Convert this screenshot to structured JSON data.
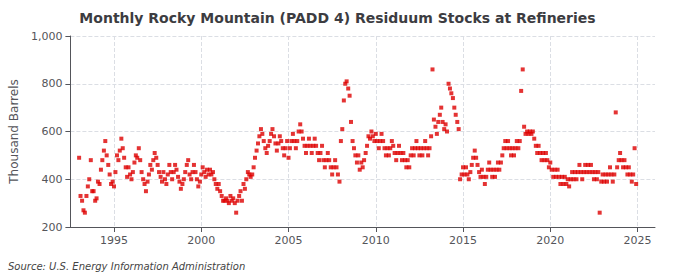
{
  "chart_data": {
    "type": "scatter",
    "title": "Monthly Rocky Mountain (PADD 4) Residuum Stocks at Refineries",
    "ylabel": "Thousand Barrels",
    "annotations": [
      "Source: U.S. Energy Information Administration"
    ],
    "color": "#dd0000",
    "marker": "square",
    "grid": true,
    "xlim": [
      1992.5,
      2026.0
    ],
    "xticks": [
      1995,
      2000,
      2005,
      2010,
      2015,
      2020,
      2025
    ],
    "ylim": [
      200,
      1000
    ],
    "yticks": [
      200,
      400,
      600,
      800,
      {
        "value": 1000,
        "label": "1,000"
      }
    ],
    "x": [
      1993.0,
      1993.08,
      1993.17,
      1993.25,
      1993.33,
      1993.42,
      1993.5,
      1993.58,
      1993.67,
      1993.75,
      1993.83,
      1993.92,
      1994.0,
      1994.08,
      1994.17,
      1994.25,
      1994.33,
      1994.42,
      1994.5,
      1994.58,
      1994.67,
      1994.75,
      1994.83,
      1994.92,
      1995.0,
      1995.08,
      1995.17,
      1995.25,
      1995.33,
      1995.42,
      1995.5,
      1995.58,
      1995.67,
      1995.75,
      1995.83,
      1995.92,
      1996.0,
      1996.08,
      1996.17,
      1996.25,
      1996.33,
      1996.42,
      1996.5,
      1996.58,
      1996.67,
      1996.75,
      1996.83,
      1996.92,
      1997.0,
      1997.08,
      1997.17,
      1997.25,
      1997.33,
      1997.42,
      1997.5,
      1997.58,
      1997.67,
      1997.75,
      1997.83,
      1997.92,
      1998.0,
      1998.08,
      1998.17,
      1998.25,
      1998.33,
      1998.42,
      1998.5,
      1998.58,
      1998.67,
      1998.75,
      1998.83,
      1998.92,
      1999.0,
      1999.08,
      1999.17,
      1999.25,
      1999.33,
      1999.42,
      1999.5,
      1999.58,
      1999.67,
      1999.75,
      1999.83,
      1999.92,
      2000.0,
      2000.08,
      2000.17,
      2000.25,
      2000.33,
      2000.42,
      2000.5,
      2000.58,
      2000.67,
      2000.75,
      2000.83,
      2000.92,
      2001.0,
      2001.08,
      2001.17,
      2001.25,
      2001.33,
      2001.42,
      2001.5,
      2001.58,
      2001.67,
      2001.75,
      2001.83,
      2001.92,
      2002.0,
      2002.08,
      2002.17,
      2002.25,
      2002.33,
      2002.42,
      2002.5,
      2002.58,
      2002.67,
      2002.75,
      2002.83,
      2002.92,
      2003.0,
      2003.08,
      2003.17,
      2003.25,
      2003.33,
      2003.42,
      2003.5,
      2003.58,
      2003.67,
      2003.75,
      2003.83,
      2003.92,
      2004.0,
      2004.08,
      2004.17,
      2004.25,
      2004.33,
      2004.42,
      2004.5,
      2004.58,
      2004.67,
      2004.75,
      2004.83,
      2004.92,
      2005.0,
      2005.08,
      2005.17,
      2005.25,
      2005.33,
      2005.42,
      2005.5,
      2005.58,
      2005.67,
      2005.75,
      2005.83,
      2005.92,
      2006.0,
      2006.08,
      2006.17,
      2006.25,
      2006.33,
      2006.42,
      2006.5,
      2006.58,
      2006.67,
      2006.75,
      2006.83,
      2006.92,
      2007.0,
      2007.08,
      2007.17,
      2007.25,
      2007.33,
      2007.42,
      2007.5,
      2007.58,
      2007.67,
      2007.75,
      2007.83,
      2007.92,
      2008.0,
      2008.08,
      2008.17,
      2008.25,
      2008.33,
      2008.42,
      2008.5,
      2008.58,
      2008.67,
      2008.75,
      2008.83,
      2008.92,
      2009.0,
      2009.08,
      2009.17,
      2009.25,
      2009.33,
      2009.42,
      2009.5,
      2009.58,
      2009.67,
      2009.75,
      2009.83,
      2009.92,
      2010.0,
      2010.08,
      2010.17,
      2010.25,
      2010.33,
      2010.42,
      2010.5,
      2010.58,
      2010.67,
      2010.75,
      2010.83,
      2010.92,
      2011.0,
      2011.08,
      2011.17,
      2011.25,
      2011.33,
      2011.42,
      2011.5,
      2011.58,
      2011.67,
      2011.75,
      2011.83,
      2011.92,
      2012.0,
      2012.08,
      2012.17,
      2012.25,
      2012.33,
      2012.42,
      2012.5,
      2012.58,
      2012.67,
      2012.75,
      2012.83,
      2012.92,
      2013.0,
      2013.08,
      2013.17,
      2013.25,
      2013.33,
      2013.42,
      2013.5,
      2013.58,
      2013.67,
      2013.75,
      2013.83,
      2013.92,
      2014.0,
      2014.08,
      2014.17,
      2014.25,
      2014.33,
      2014.42,
      2014.5,
      2014.58,
      2014.67,
      2014.75,
      2014.83,
      2014.92,
      2015.0,
      2015.08,
      2015.17,
      2015.25,
      2015.33,
      2015.42,
      2015.5,
      2015.58,
      2015.67,
      2015.75,
      2015.83,
      2015.92,
      2016.0,
      2016.08,
      2016.17,
      2016.25,
      2016.33,
      2016.42,
      2016.5,
      2016.58,
      2016.67,
      2016.75,
      2016.83,
      2016.92,
      2017.0,
      2017.08,
      2017.17,
      2017.25,
      2017.33,
      2017.42,
      2017.5,
      2017.58,
      2017.67,
      2017.75,
      2017.83,
      2017.92,
      2018.0,
      2018.08,
      2018.17,
      2018.25,
      2018.33,
      2018.42,
      2018.5,
      2018.58,
      2018.67,
      2018.75,
      2018.83,
      2018.92,
      2019.0,
      2019.08,
      2019.17,
      2019.25,
      2019.33,
      2019.42,
      2019.5,
      2019.58,
      2019.67,
      2019.75,
      2019.83,
      2019.92,
      2020.0,
      2020.08,
      2020.17,
      2020.25,
      2020.33,
      2020.42,
      2020.5,
      2020.58,
      2020.67,
      2020.75,
      2020.83,
      2020.92,
      2021.0,
      2021.08,
      2021.17,
      2021.25,
      2021.33,
      2021.42,
      2021.5,
      2021.58,
      2021.67,
      2021.75,
      2021.83,
      2021.92,
      2022.0,
      2022.08,
      2022.17,
      2022.25,
      2022.33,
      2022.42,
      2022.5,
      2022.58,
      2022.67,
      2022.75,
      2022.83,
      2022.92,
      2023.0,
      2023.08,
      2023.17,
      2023.25,
      2023.33,
      2023.42,
      2023.5,
      2023.58,
      2023.67,
      2023.75,
      2023.83,
      2023.92,
      2024.0,
      2024.08,
      2024.17,
      2024.25,
      2024.33,
      2024.42,
      2024.5,
      2024.58,
      2024.67,
      2024.75,
      2024.83,
      2024.92
    ],
    "values": [
      490,
      330,
      310,
      270,
      260,
      330,
      370,
      400,
      480,
      350,
      350,
      310,
      320,
      390,
      380,
      440,
      480,
      520,
      560,
      500,
      460,
      420,
      380,
      390,
      370,
      430,
      500,
      480,
      520,
      570,
      530,
      490,
      450,
      410,
      450,
      420,
      400,
      430,
      470,
      500,
      490,
      530,
      480,
      430,
      400,
      380,
      350,
      390,
      420,
      460,
      440,
      480,
      510,
      490,
      460,
      430,
      410,
      390,
      430,
      400,
      380,
      420,
      460,
      430,
      400,
      430,
      460,
      440,
      410,
      390,
      360,
      380,
      400,
      430,
      460,
      480,
      420,
      400,
      430,
      460,
      430,
      400,
      370,
      390,
      420,
      450,
      430,
      410,
      440,
      420,
      440,
      420,
      430,
      400,
      380,
      360,
      380,
      350,
      330,
      310,
      310,
      320,
      310,
      300,
      330,
      310,
      320,
      300,
      260,
      310,
      330,
      350,
      310,
      380,
      360,
      400,
      430,
      420,
      410,
      420,
      450,
      490,
      520,
      550,
      580,
      610,
      590,
      560,
      530,
      510,
      540,
      560,
      590,
      610,
      580,
      550,
      520,
      550,
      580,
      560,
      530,
      500,
      530,
      560,
      490,
      530,
      560,
      590,
      560,
      530,
      560,
      600,
      630,
      600,
      570,
      540,
      510,
      540,
      570,
      540,
      510,
      540,
      570,
      540,
      510,
      480,
      510,
      540,
      480,
      450,
      480,
      510,
      480,
      450,
      420,
      450,
      480,
      450,
      420,
      390,
      560,
      610,
      730,
      800,
      810,
      780,
      750,
      640,
      560,
      530,
      500,
      470,
      500,
      440,
      470,
      450,
      480,
      510,
      540,
      580,
      570,
      600,
      580,
      560,
      590,
      560,
      530,
      560,
      590,
      560,
      530,
      500,
      530,
      500,
      530,
      560,
      540,
      510,
      480,
      510,
      540,
      510,
      480,
      510,
      480,
      450,
      480,
      450,
      500,
      530,
      500,
      530,
      560,
      530,
      500,
      530,
      500,
      530,
      560,
      530,
      500,
      530,
      580,
      860,
      650,
      620,
      590,
      640,
      670,
      700,
      640,
      610,
      630,
      600,
      800,
      780,
      760,
      740,
      700,
      670,
      640,
      610,
      400,
      420,
      450,
      420,
      450,
      420,
      400,
      430,
      460,
      490,
      520,
      490,
      460,
      430,
      410,
      440,
      410,
      380,
      410,
      440,
      470,
      440,
      410,
      440,
      410,
      440,
      470,
      440,
      470,
      500,
      530,
      560,
      530,
      560,
      530,
      500,
      530,
      500,
      530,
      560,
      530,
      560,
      770,
      860,
      620,
      590,
      600,
      590,
      600,
      590,
      600,
      570,
      540,
      510,
      540,
      510,
      480,
      510,
      480,
      510,
      480,
      450,
      470,
      440,
      410,
      440,
      410,
      440,
      410,
      380,
      410,
      380,
      410,
      380,
      400,
      370,
      400,
      430,
      400,
      430,
      400,
      430,
      460,
      430,
      400,
      430,
      460,
      430,
      460,
      430,
      460,
      430,
      400,
      430,
      400,
      430,
      260,
      390,
      420,
      390,
      420,
      390,
      420,
      450,
      420,
      390,
      420,
      680,
      450,
      480,
      510,
      480,
      450,
      480,
      450,
      420,
      450,
      420,
      390,
      420,
      530,
      380
    ]
  }
}
